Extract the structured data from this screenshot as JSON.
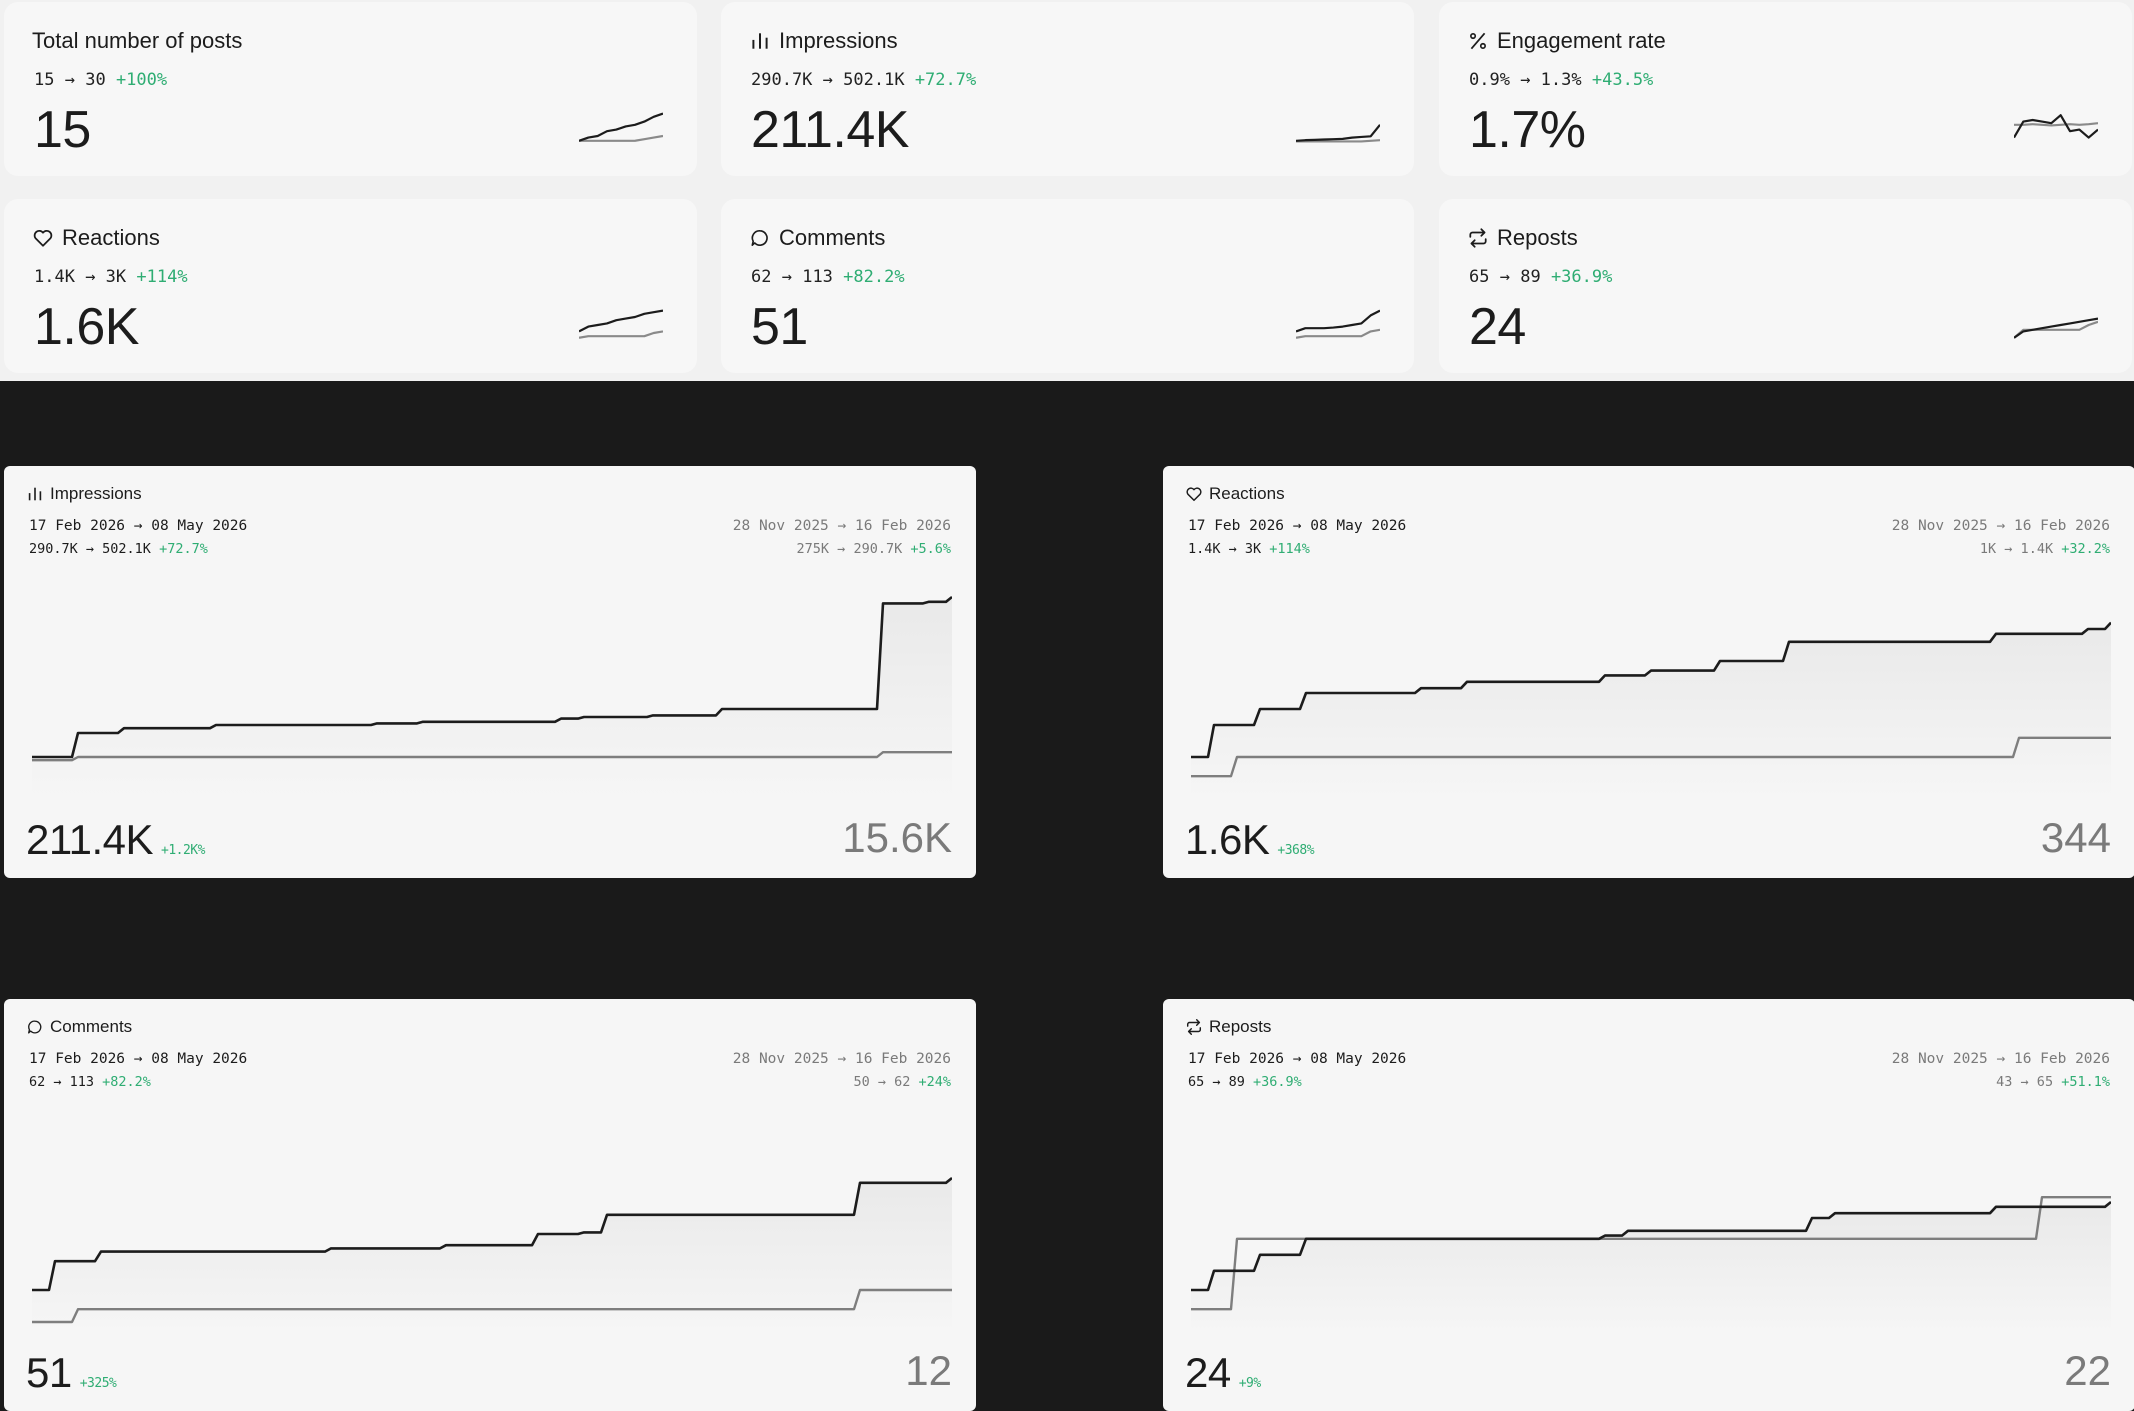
{
  "stat_cards": [
    {
      "id": "posts",
      "title": "Total number of posts",
      "icon": "none",
      "from": "15",
      "to": "30",
      "delta": "+100%",
      "value": "15",
      "spark": {
        "current": [
          0.1,
          0.2,
          0.25,
          0.4,
          0.45,
          0.55,
          0.6,
          0.7,
          0.85,
          0.95
        ],
        "previous": [
          0.1,
          0.1,
          0.1,
          0.1,
          0.1,
          0.1,
          0.1,
          0.15,
          0.2,
          0.25
        ]
      }
    },
    {
      "id": "impressions",
      "title": "Impressions",
      "icon": "bar-chart-icon",
      "from": "290.7K",
      "to": "502.1K",
      "delta": "+72.7%",
      "value": "211.4K",
      "spark": {
        "current": [
          0.1,
          0.12,
          0.13,
          0.14,
          0.15,
          0.16,
          0.2,
          0.22,
          0.24,
          0.6
        ],
        "previous": [
          0.08,
          0.08,
          0.08,
          0.08,
          0.08,
          0.08,
          0.08,
          0.08,
          0.1,
          0.12
        ]
      }
    },
    {
      "id": "engagement",
      "title": "Engagement rate",
      "icon": "percent-icon",
      "from": "0.9%",
      "to": "1.3%",
      "delta": "+43.5%",
      "value": "1.7%",
      "spark": {
        "current": [
          0.2,
          0.7,
          0.75,
          0.7,
          0.65,
          0.9,
          0.4,
          0.45,
          0.2,
          0.45
        ],
        "previous": [
          0.6,
          0.6,
          0.62,
          0.6,
          0.58,
          0.6,
          0.62,
          0.6,
          0.62,
          0.65
        ]
      }
    },
    {
      "id": "reactions",
      "title": "Reactions",
      "icon": "heart-icon",
      "from": "1.4K",
      "to": "3K",
      "delta": "+114%",
      "value": "1.6K",
      "spark": {
        "current": [
          0.3,
          0.45,
          0.5,
          0.55,
          0.65,
          0.7,
          0.75,
          0.85,
          0.9,
          0.95
        ],
        "previous": [
          0.1,
          0.15,
          0.15,
          0.15,
          0.15,
          0.15,
          0.15,
          0.15,
          0.25,
          0.3
        ]
      }
    },
    {
      "id": "comments",
      "title": "Comments",
      "icon": "comment-icon",
      "from": "62",
      "to": "113",
      "delta": "+82.2%",
      "value": "51",
      "spark": {
        "current": [
          0.3,
          0.4,
          0.4,
          0.4,
          0.42,
          0.45,
          0.5,
          0.55,
          0.8,
          0.95
        ],
        "previous": [
          0.1,
          0.15,
          0.15,
          0.15,
          0.15,
          0.15,
          0.15,
          0.15,
          0.3,
          0.35
        ]
      }
    },
    {
      "id": "reposts",
      "title": "Reposts",
      "icon": "repost-icon",
      "from": "65",
      "to": "89",
      "delta": "+36.9%",
      "value": "24",
      "spark": {
        "current": [
          0.1,
          0.3,
          0.35,
          0.4,
          0.45,
          0.5,
          0.55,
          0.6,
          0.65,
          0.7
        ],
        "previous": [
          0.1,
          0.35,
          0.35,
          0.35,
          0.35,
          0.35,
          0.35,
          0.35,
          0.5,
          0.6
        ]
      }
    }
  ],
  "chart_cards": [
    {
      "id": "impressions",
      "title": "Impressions",
      "icon": "bar-chart-icon",
      "current_range": "17 Feb 2026 → 08 May 2026",
      "current_vals": "290.7K → 502.1K",
      "current_delta": "+72.7%",
      "prev_range": "28 Nov 2025 → 16 Feb 2026",
      "prev_vals": "275K → 290.7K",
      "prev_delta": "+5.6%",
      "value": "211.4K",
      "value_delta": "+1.2K%",
      "prev_value": "15.6K",
      "chart_data": {
        "type": "line",
        "current": [
          0,
          0,
          0.15,
          0.15,
          0.18,
          0.18,
          0.18,
          0.18,
          0.2,
          0.2,
          0.2,
          0.2,
          0.2,
          0.2,
          0.2,
          0.21,
          0.21,
          0.22,
          0.22,
          0.22,
          0.22,
          0.22,
          0.22,
          0.24,
          0.25,
          0.25,
          0.25,
          0.26,
          0.26,
          0.26,
          0.3,
          0.3,
          0.3,
          0.3,
          0.3,
          0.3,
          0.3,
          0.96,
          0.96,
          0.97,
          1.0
        ],
        "previous": [
          -0.02,
          -0.02,
          0.0,
          0.0,
          0.0,
          0.0,
          0.0,
          0.0,
          0.0,
          0.0,
          0.0,
          0.0,
          0.0,
          0.0,
          0.0,
          0.0,
          0.0,
          0.0,
          0.0,
          0.0,
          0.0,
          0.0,
          0.0,
          0.0,
          0.0,
          0.0,
          0.0,
          0.0,
          0.0,
          0.0,
          0.0,
          0.0,
          0.0,
          0.0,
          0.0,
          0.0,
          0.0,
          0.03,
          0.03,
          0.03,
          0.03
        ]
      }
    },
    {
      "id": "reactions",
      "title": "Reactions",
      "icon": "heart-icon",
      "current_range": "17 Feb 2026 → 08 May 2026",
      "current_vals": "1.4K → 3K",
      "current_delta": "+114%",
      "prev_range": "28 Nov 2025 → 16 Feb 2026",
      "prev_vals": "1K → 1.4K",
      "prev_delta": "+32.2%",
      "value": "1.6K",
      "value_delta": "+368%",
      "prev_value": "344",
      "chart_data": {
        "type": "line",
        "current": [
          0,
          0.2,
          0.2,
          0.3,
          0.3,
          0.4,
          0.4,
          0.4,
          0.4,
          0.4,
          0.43,
          0.43,
          0.47,
          0.47,
          0.47,
          0.47,
          0.47,
          0.47,
          0.51,
          0.51,
          0.54,
          0.54,
          0.54,
          0.6,
          0.6,
          0.6,
          0.72,
          0.72,
          0.72,
          0.72,
          0.72,
          0.72,
          0.72,
          0.72,
          0.72,
          0.77,
          0.77,
          0.77,
          0.77,
          0.8,
          0.84
        ],
        "previous": [
          -0.12,
          -0.12,
          0.0,
          0.0,
          0.0,
          0.0,
          0.0,
          0.0,
          0.0,
          0.0,
          0.0,
          0.0,
          0.0,
          0.0,
          0.0,
          0.0,
          0.0,
          0.0,
          0.0,
          0.0,
          0.0,
          0.0,
          0.0,
          0.0,
          0.0,
          0.0,
          0.0,
          0.0,
          0.0,
          0.0,
          0.0,
          0.0,
          0.0,
          0.0,
          0.0,
          0.0,
          0.12,
          0.12,
          0.12,
          0.12,
          0.12
        ]
      }
    },
    {
      "id": "comments",
      "title": "Comments",
      "icon": "comment-icon",
      "current_range": "17 Feb 2026 → 08 May 2026",
      "current_vals": "62 → 113",
      "current_delta": "+82.2%",
      "prev_range": "28 Nov 2025 → 16 Feb 2026",
      "prev_vals": "50 → 62",
      "prev_delta": "+24%",
      "value": "51",
      "value_delta": "+325%",
      "prev_value": "12",
      "chart_data": {
        "type": "line",
        "current": [
          0,
          0.18,
          0.18,
          0.24,
          0.24,
          0.24,
          0.24,
          0.24,
          0.24,
          0.24,
          0.24,
          0.24,
          0.24,
          0.26,
          0.26,
          0.26,
          0.26,
          0.26,
          0.28,
          0.28,
          0.28,
          0.28,
          0.35,
          0.35,
          0.36,
          0.47,
          0.47,
          0.47,
          0.47,
          0.47,
          0.47,
          0.47,
          0.47,
          0.47,
          0.47,
          0.47,
          0.67,
          0.67,
          0.67,
          0.67,
          0.7
        ],
        "previous": [
          -0.2,
          -0.2,
          -0.12,
          -0.12,
          -0.12,
          -0.12,
          -0.12,
          -0.12,
          -0.12,
          -0.12,
          -0.12,
          -0.12,
          -0.12,
          -0.12,
          -0.12,
          -0.12,
          -0.12,
          -0.12,
          -0.12,
          -0.12,
          -0.12,
          -0.12,
          -0.12,
          -0.12,
          -0.12,
          -0.12,
          -0.12,
          -0.12,
          -0.12,
          -0.12,
          -0.12,
          -0.12,
          -0.12,
          -0.12,
          -0.12,
          -0.12,
          0.0,
          0.0,
          0.0,
          0.0,
          0.0
        ]
      }
    },
    {
      "id": "reposts",
      "title": "Reposts",
      "icon": "repost-icon",
      "current_range": "17 Feb 2026 → 08 May 2026",
      "current_vals": "65 → 89",
      "current_delta": "+36.9%",
      "prev_range": "28 Nov 2025 → 16 Feb 2026",
      "prev_vals": "43 → 65",
      "prev_delta": "+51.1%",
      "value": "24",
      "value_delta": "+9%",
      "prev_value": "22",
      "chart_data": {
        "type": "line",
        "current": [
          0,
          0.12,
          0.12,
          0.22,
          0.22,
          0.32,
          0.32,
          0.32,
          0.32,
          0.32,
          0.32,
          0.32,
          0.32,
          0.32,
          0.32,
          0.32,
          0.32,
          0.32,
          0.34,
          0.37,
          0.37,
          0.37,
          0.37,
          0.37,
          0.37,
          0.37,
          0.37,
          0.45,
          0.48,
          0.48,
          0.48,
          0.48,
          0.48,
          0.48,
          0.48,
          0.52,
          0.52,
          0.52,
          0.52,
          0.52,
          0.55
        ],
        "previous": [
          -0.12,
          -0.12,
          0.32,
          0.32,
          0.32,
          0.32,
          0.32,
          0.32,
          0.32,
          0.32,
          0.32,
          0.32,
          0.32,
          0.32,
          0.32,
          0.32,
          0.32,
          0.32,
          0.32,
          0.32,
          0.32,
          0.32,
          0.32,
          0.32,
          0.32,
          0.32,
          0.32,
          0.32,
          0.32,
          0.32,
          0.32,
          0.32,
          0.32,
          0.32,
          0.32,
          0.32,
          0.32,
          0.58,
          0.58,
          0.58,
          0.58
        ]
      }
    }
  ]
}
